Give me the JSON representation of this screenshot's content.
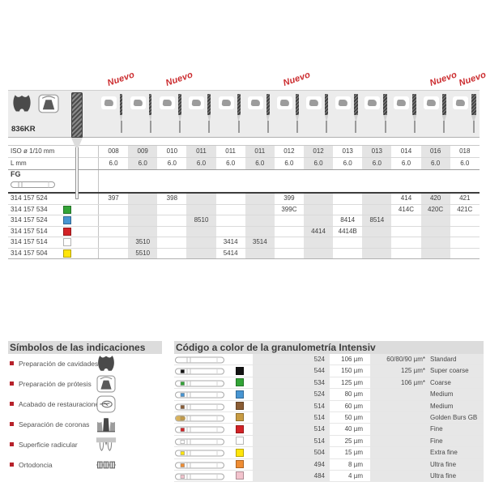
{
  "nuevo_label": "Nuevo",
  "accent_red": "#cb2a2d",
  "top_table": {
    "model": "836KR",
    "row_labels": {
      "iso": "ISO ø 1/10 mm",
      "l": "L mm",
      "shank": "FG"
    },
    "columns": [
      {
        "iso": "008",
        "l": "6.0",
        "nuevo": true
      },
      {
        "iso": "009",
        "l": "6.0",
        "nuevo": false
      },
      {
        "iso": "010",
        "l": "6.0",
        "nuevo": true
      },
      {
        "iso": "011",
        "l": "6.0",
        "nuevo": false
      },
      {
        "iso": "011",
        "l": "6.0",
        "nuevo": false
      },
      {
        "iso": "011",
        "l": "6.0",
        "nuevo": false
      },
      {
        "iso": "012",
        "l": "6.0",
        "nuevo": true
      },
      {
        "iso": "012",
        "l": "6.0",
        "nuevo": false
      },
      {
        "iso": "013",
        "l": "6.0",
        "nuevo": false
      },
      {
        "iso": "013",
        "l": "6.0",
        "nuevo": false
      },
      {
        "iso": "014",
        "l": "6.0",
        "nuevo": false
      },
      {
        "iso": "016",
        "l": "6.0",
        "nuevo": true
      },
      {
        "iso": "018",
        "l": "6.0",
        "nuevo": true
      }
    ],
    "rows": [
      {
        "code": "314 157 524",
        "color": null,
        "values": [
          "397",
          "",
          "398",
          "",
          "",
          "",
          "399",
          "",
          "",
          "",
          "414",
          "420",
          "421"
        ]
      },
      {
        "code": "314 157 534",
        "color": "green",
        "values": [
          "",
          "",
          "",
          "",
          "",
          "",
          "399C",
          "",
          "",
          "",
          "414C",
          "420C",
          "421C"
        ]
      },
      {
        "code": "314 157 524",
        "color": "blue",
        "values": [
          "",
          "",
          "",
          "8510",
          "",
          "",
          "",
          "",
          "8414",
          "8514",
          "",
          "",
          ""
        ]
      },
      {
        "code": "314 157 514",
        "color": "red",
        "values": [
          "",
          "",
          "",
          "",
          "",
          "",
          "",
          "4414",
          "4414B",
          "",
          "",
          "",
          ""
        ]
      },
      {
        "code": "314 157 514",
        "color": "white",
        "values": [
          "",
          "3510",
          "",
          "",
          "3414",
          "3514",
          "",
          "",
          "",
          "",
          "",
          "",
          ""
        ]
      },
      {
        "code": "314 157 504",
        "color": "yellow",
        "values": [
          "",
          "5510",
          "",
          "",
          "5414",
          "",
          "",
          "",
          "",
          "",
          "",
          "",
          ""
        ]
      }
    ]
  },
  "symbols": {
    "title": "Símbolos de las indicaciones",
    "items": [
      {
        "label": "Preparación de cavidades",
        "icon": "cavity-icon"
      },
      {
        "label": "Preparación de prótesis",
        "icon": "prosthesis-icon"
      },
      {
        "label": "Acabado de restauraciones",
        "icon": "finishing-icon"
      },
      {
        "label": "Separación de coronas",
        "icon": "crown-separation-icon"
      },
      {
        "label": "Superficie radicular",
        "icon": "root-surface-icon"
      },
      {
        "label": "Ortodoncia",
        "icon": "orthodontics-icon"
      }
    ]
  },
  "legend": {
    "title": "Código a color de la granulometría Intensiv",
    "rows": [
      {
        "color": null,
        "code": "524",
        "grain": "106 µm",
        "extra": "60/80/90 µm*",
        "name": "Standard"
      },
      {
        "color": "black",
        "code": "544",
        "grain": "150 µm",
        "extra": "125 µm*",
        "name": "Super coarse"
      },
      {
        "color": "green",
        "code": "534",
        "grain": "125 µm",
        "extra": "106 µm*",
        "name": "Coarse"
      },
      {
        "color": "blue",
        "code": "524",
        "grain": "80 µm",
        "extra": "",
        "name": "Medium"
      },
      {
        "color": "brown",
        "code": "514",
        "grain": "60 µm",
        "extra": "",
        "name": "Medium"
      },
      {
        "color": "gold",
        "code": "514",
        "grain": "50 µm",
        "extra": "",
        "name": "Golden Burs GB"
      },
      {
        "color": "red",
        "code": "514",
        "grain": "40 µm",
        "extra": "",
        "name": "Fine"
      },
      {
        "color": "white",
        "code": "514",
        "grain": "25 µm",
        "extra": "",
        "name": "Fine"
      },
      {
        "color": "yellow",
        "code": "504",
        "grain": "15 µm",
        "extra": "",
        "name": "Extra fine"
      },
      {
        "color": "orange",
        "code": "494",
        "grain": "8 µm",
        "extra": "",
        "name": "Ultra fine"
      },
      {
        "color": "pink",
        "code": "484",
        "grain": "4 µm",
        "extra": "",
        "name": "Ultra fine"
      }
    ]
  },
  "colors": {
    "black": "#141414",
    "green": "#33a437",
    "blue": "#4795d2",
    "brown": "#8a5c34",
    "gold": "#c89b42",
    "red": "#d32226",
    "white": "#ffffff",
    "yellow": "#ffe50a",
    "orange": "#ef8d33",
    "pink": "#f2c3cd"
  }
}
